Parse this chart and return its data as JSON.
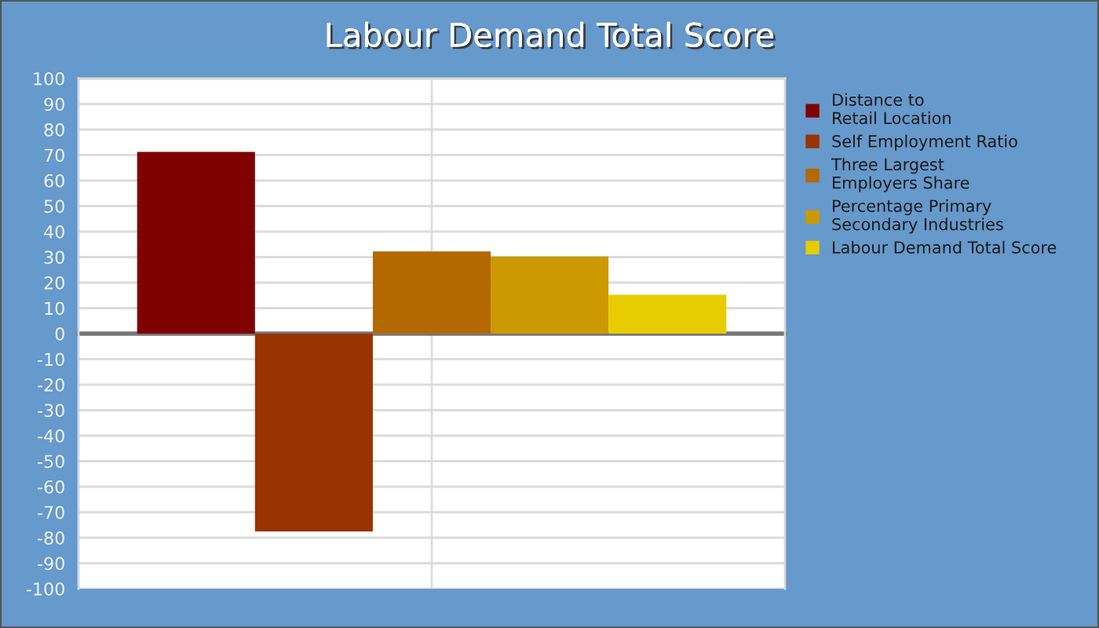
{
  "chart_data": {
    "type": "bar",
    "title": "Labour Demand Total Score",
    "categories": [
      null
    ],
    "series": [
      {
        "name": "Distance to\nRetail Location",
        "color": "#800000",
        "values": [
          71.2
        ]
      },
      {
        "name": "Self Employment Ratio",
        "color": "#993300",
        "values": [
          -77.5
        ]
      },
      {
        "name": "Three Largest\nEmployers Share",
        "color": "#b36800",
        "values": [
          32.2
        ]
      },
      {
        "name": "Percentage Primary\nSecondary Industries",
        "color": "#cc9900",
        "values": [
          30.2
        ]
      },
      {
        "name": "Labour Demand Total Score",
        "color": "#e6cc00",
        "values": [
          15.2
        ]
      }
    ],
    "ylim": [
      -100,
      100
    ],
    "yticks": [
      -100,
      -90,
      -80,
      -70,
      -60,
      -50,
      -40,
      -30,
      -20,
      -10,
      0,
      10,
      20,
      30,
      40,
      50,
      60,
      70,
      80,
      90,
      100
    ],
    "grid": true,
    "legend": "right"
  }
}
